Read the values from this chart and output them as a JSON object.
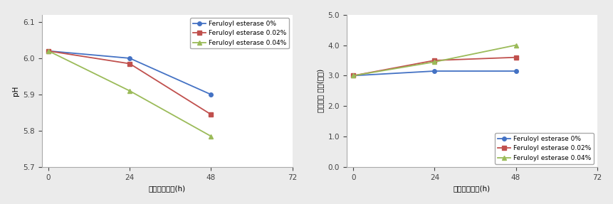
{
  "x": [
    0,
    24,
    48
  ],
  "xlim": [
    -2,
    72
  ],
  "xticks": [
    0,
    24,
    48,
    72
  ],
  "xlabel": "효소처리시간(h)",
  "left_ylabel": "pH",
  "left_ylim": [
    5.7,
    6.12
  ],
  "left_yticks": [
    5.7,
    5.8,
    5.9,
    6.0,
    6.1
  ],
  "left_series": [
    {
      "label": "Feruloyl esterase 0%",
      "color": "#4472C4",
      "marker": "o",
      "values": [
        6.02,
        6.0,
        5.9
      ]
    },
    {
      "label": "Feruloyl esterase 0.02%",
      "color": "#C0504D",
      "marker": "s",
      "values": [
        6.02,
        5.985,
        5.845
      ]
    },
    {
      "label": "Feruloyl esterase 0.04%",
      "color": "#9BBB59",
      "marker": "^",
      "values": [
        6.02,
        5.91,
        5.785
      ]
    }
  ],
  "right_ylabel": "고소한향 강도(점수)",
  "right_ylim": [
    0.0,
    5.0
  ],
  "right_yticks": [
    0.0,
    1.0,
    2.0,
    3.0,
    4.0,
    5.0
  ],
  "right_series": [
    {
      "label": "Feruloyl esterase 0%",
      "color": "#4472C4",
      "marker": "o",
      "values": [
        3.0,
        3.15,
        3.15
      ]
    },
    {
      "label": "Feruloyl esterase 0.02%",
      "color": "#C0504D",
      "marker": "s",
      "values": [
        3.0,
        3.5,
        3.6
      ]
    },
    {
      "label": "Feruloyl esterase 0.04%",
      "color": "#9BBB59",
      "marker": "^",
      "values": [
        3.0,
        3.45,
        4.0
      ]
    }
  ],
  "bg_color": "#ebebeb",
  "plot_bg_color": "#ffffff",
  "legend_loc_left": "upper right",
  "legend_loc_right": "lower right",
  "marker_size": 4,
  "line_width": 1.3,
  "font_size": 7.5,
  "tick_font_size": 7.5,
  "label_font_size": 7.5,
  "legend_font_size": 6.5
}
